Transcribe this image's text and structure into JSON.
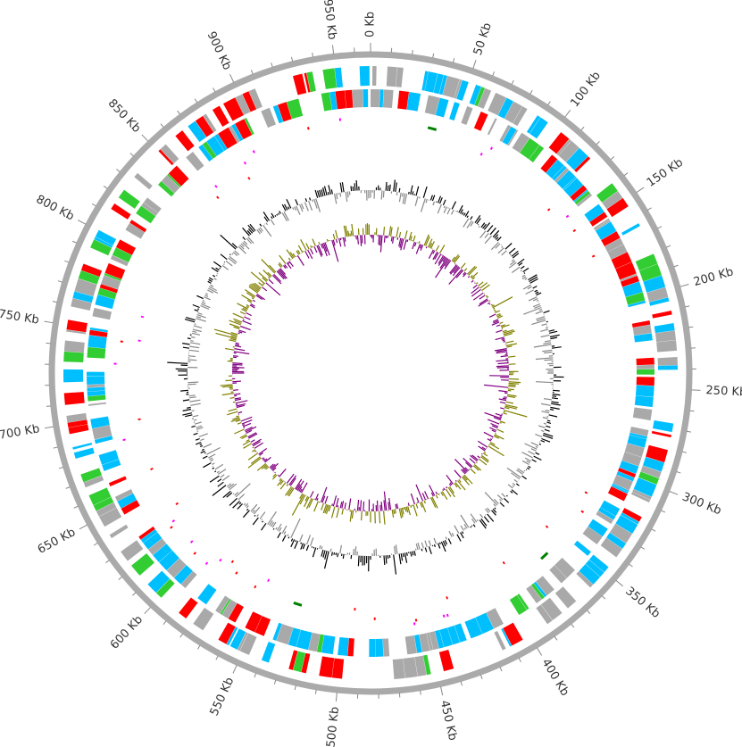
{
  "ring": {
    "labels": [
      "0 Kb",
      "50 Kb",
      "100 Kb",
      "150 Kb",
      "200 Kb",
      "250 Kb",
      "300 Kb",
      "350 Kb",
      "400 Kb",
      "450 Kb",
      "500 Kb",
      "550 Kb",
      "600 Kb",
      "650 Kb",
      "700 Kb",
      "750 Kb",
      "800 Kb",
      "850 Kb",
      "900 Kb",
      "950 Kb"
    ]
  }
}
